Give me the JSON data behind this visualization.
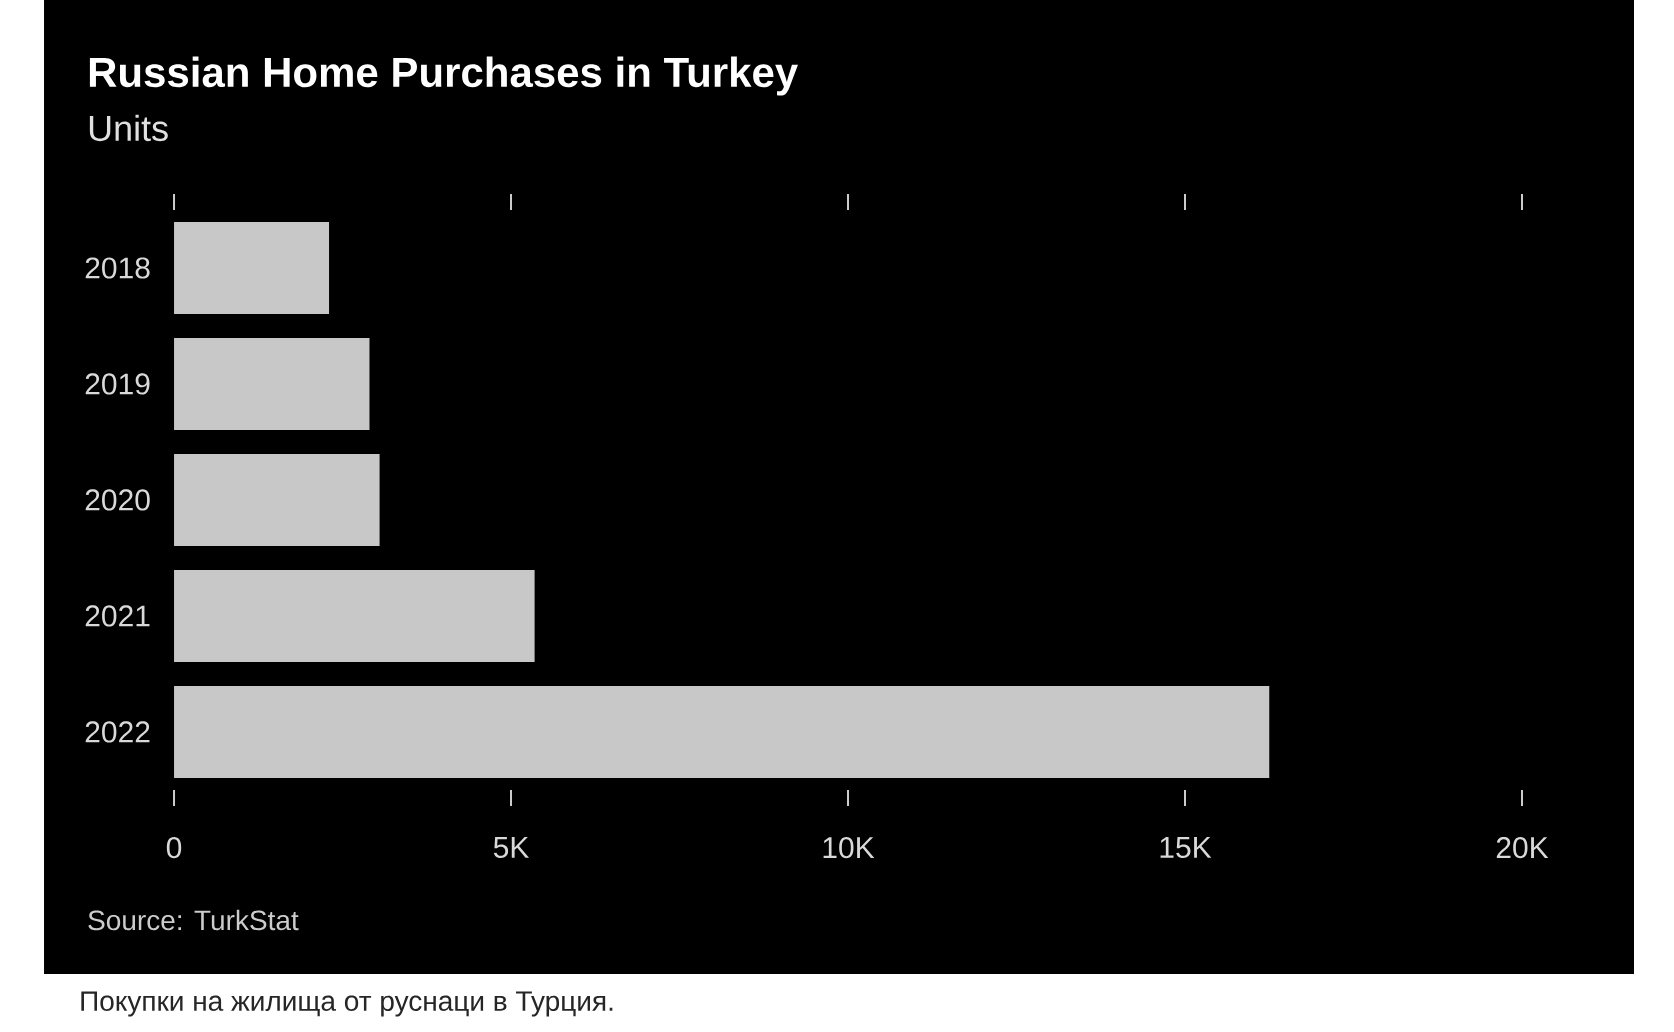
{
  "chart_data": {
    "type": "bar",
    "orientation": "horizontal",
    "title": "Russian Home Purchases in Turkey",
    "subtitle": "Units",
    "categories": [
      "2018",
      "2019",
      "2020",
      "2021",
      "2022"
    ],
    "values": [
      2300,
      2900,
      3050,
      5350,
      16250
    ],
    "color": "#c8c8c8",
    "xlim": [
      0,
      20000
    ],
    "xticks": [
      0,
      {
        "value": 5000,
        "label": "5K"
      },
      {
        "value": 10000,
        "label": "10K"
      },
      {
        "value": 15000,
        "label": "15K"
      },
      {
        "value": 20000,
        "label": "20K"
      }
    ],
    "annotations": [
      "Source: TurkStat",
      "Покупки на жилища от руснаци в Турция."
    ]
  }
}
